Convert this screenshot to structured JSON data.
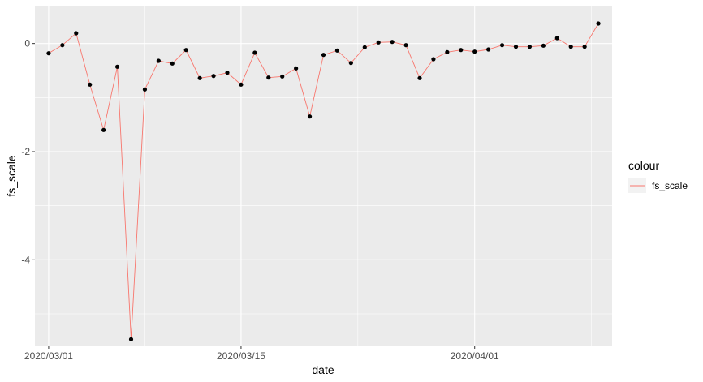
{
  "chart_data": {
    "type": "line",
    "title": "",
    "xlabel": "date",
    "ylabel": "fs_scale",
    "x_ticks": [
      "2020/03/01",
      "2020/03/15",
      "2020/04/01"
    ],
    "y_ticks": [
      "-4",
      "-2",
      "0"
    ],
    "ylim": [
      -5.6,
      0.7
    ],
    "xlim": [
      "2020-02-29",
      "2020-04-11"
    ],
    "grid": true,
    "background": "#ebebeb",
    "legend": {
      "title": "colour",
      "position": "right",
      "entries": [
        "fs_scale"
      ]
    },
    "series": [
      {
        "name": "fs_scale",
        "color": "#f8766d",
        "point_color": "#000000",
        "x": [
          "2020-03-01",
          "2020-03-02",
          "2020-03-03",
          "2020-03-04",
          "2020-03-05",
          "2020-03-06",
          "2020-03-07",
          "2020-03-08",
          "2020-03-09",
          "2020-03-10",
          "2020-03-11",
          "2020-03-12",
          "2020-03-13",
          "2020-03-14",
          "2020-03-15",
          "2020-03-16",
          "2020-03-17",
          "2020-03-18",
          "2020-03-19",
          "2020-03-20",
          "2020-03-21",
          "2020-03-22",
          "2020-03-23",
          "2020-03-24",
          "2020-03-25",
          "2020-03-26",
          "2020-03-27",
          "2020-03-28",
          "2020-03-29",
          "2020-03-30",
          "2020-03-31",
          "2020-04-01",
          "2020-04-02",
          "2020-04-03",
          "2020-04-04",
          "2020-04-05",
          "2020-04-06",
          "2020-04-07",
          "2020-04-08",
          "2020-04-09",
          "2020-04-10"
        ],
        "y": [
          -0.18,
          -0.03,
          0.19,
          -0.76,
          -1.6,
          -0.43,
          -5.47,
          -0.85,
          -0.32,
          -0.37,
          -0.12,
          -0.64,
          -0.6,
          -0.54,
          -0.76,
          -0.17,
          -0.63,
          -0.61,
          -0.46,
          -1.35,
          -0.21,
          -0.13,
          -0.36,
          -0.07,
          0.02,
          0.03,
          -0.03,
          -0.64,
          -0.29,
          -0.16,
          -0.12,
          -0.15,
          -0.11,
          -0.03,
          -0.06,
          -0.06,
          -0.04,
          0.1,
          -0.06,
          -0.06,
          0.37
        ]
      }
    ]
  }
}
